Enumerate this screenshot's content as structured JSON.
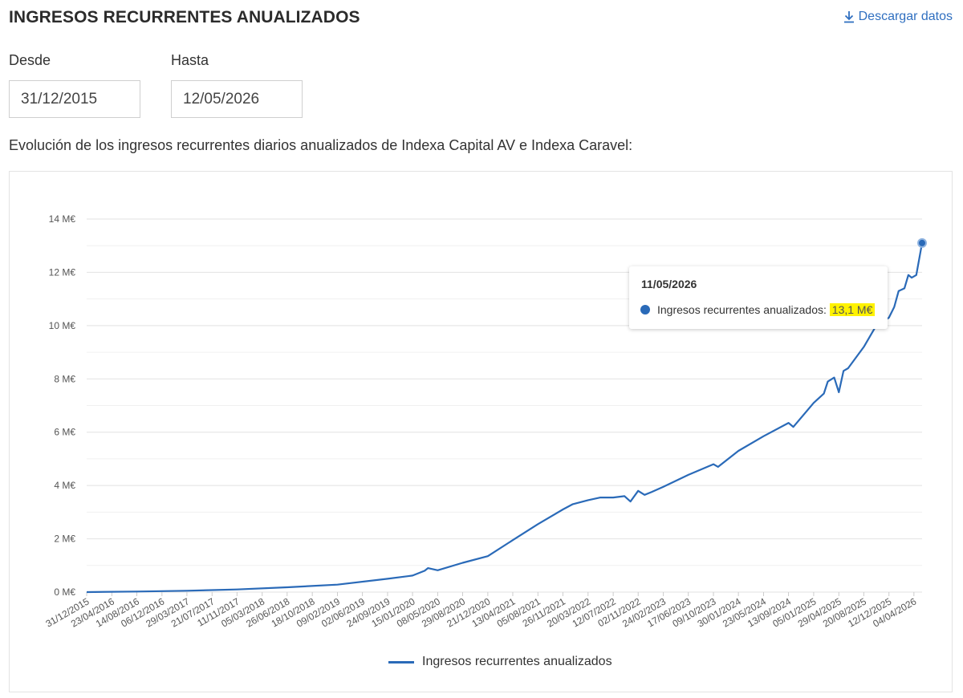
{
  "header": {
    "title": "INGRESOS RECURRENTES ANUALIZADOS",
    "download_label": "Descargar datos",
    "download_icon": "download-icon"
  },
  "filters": {
    "from_label": "Desde",
    "from_value": "31/12/2015",
    "to_label": "Hasta",
    "to_value": "12/05/2026"
  },
  "description": "Evolución de los ingresos recurrentes diarios anualizados de Indexa Capital AV e Indexa Caravel:",
  "tooltip": {
    "date": "11/05/2026",
    "label": "Ingresos recurrentes anualizados: ",
    "value": "13,1 M€"
  },
  "colors": {
    "series": "#2a6ab8",
    "accent_link": "#2f6fc0",
    "highlight": "#fff200",
    "grid": "#e6e6e6"
  },
  "chart_data": {
    "type": "line",
    "title": "",
    "xlabel": "",
    "ylabel": "",
    "ylim": [
      0,
      14
    ],
    "y_ticks": [
      0,
      2,
      4,
      6,
      8,
      10,
      12,
      14
    ],
    "y_tick_labels": [
      "0 M€",
      "2 M€",
      "4 M€",
      "6 M€",
      "8 M€",
      "10 M€",
      "12 M€",
      "14 M€"
    ],
    "x_tick_labels": [
      "31/12/2015",
      "23/04/2016",
      "14/08/2016",
      "06/12/2016",
      "29/03/2017",
      "21/07/2017",
      "11/11/2017",
      "05/03/2018",
      "26/06/2018",
      "18/10/2018",
      "09/02/2019",
      "02/06/2019",
      "24/09/2019",
      "15/01/2020",
      "08/05/2020",
      "29/08/2020",
      "21/12/2020",
      "13/04/2021",
      "05/08/2021",
      "26/11/2021",
      "20/03/2022",
      "12/07/2022",
      "02/11/2022",
      "24/02/2023",
      "17/06/2023",
      "09/10/2023",
      "30/01/2024",
      "23/05/2024",
      "13/09/2024",
      "05/01/2025",
      "29/04/2025",
      "20/08/2025",
      "12/12/2025",
      "04/04/2026"
    ],
    "grid": true,
    "legend_position": "bottom-center",
    "series": [
      {
        "name": "Ingresos recurrentes anualizados",
        "x": [
          "2015-12-31",
          "2016-08-14",
          "2017-03-29",
          "2017-11-11",
          "2018-06-26",
          "2019-02-09",
          "2019-09-24",
          "2020-01-15",
          "2020-03-10",
          "2020-03-25",
          "2020-05-08",
          "2020-08-29",
          "2020-12-21",
          "2021-04-13",
          "2021-08-05",
          "2021-11-26",
          "2022-01-10",
          "2022-03-20",
          "2022-05-15",
          "2022-07-12",
          "2022-09-01",
          "2022-09-28",
          "2022-11-02",
          "2022-12-01",
          "2023-01-01",
          "2023-02-24",
          "2023-06-17",
          "2023-10-09",
          "2023-10-30",
          "2024-01-30",
          "2024-05-23",
          "2024-09-13",
          "2024-10-05",
          "2025-01-05",
          "2025-02-20",
          "2025-03-10",
          "2025-04-08",
          "2025-04-29",
          "2025-05-20",
          "2025-06-10",
          "2025-08-20",
          "2025-10-15",
          "2025-12-12",
          "2026-01-05",
          "2026-01-25",
          "2026-02-20",
          "2026-03-10",
          "2026-03-25",
          "2026-04-15",
          "2026-05-11"
        ],
        "values": [
          0.0,
          0.02,
          0.05,
          0.1,
          0.18,
          0.28,
          0.5,
          0.62,
          0.8,
          0.9,
          0.82,
          1.1,
          1.35,
          1.95,
          2.55,
          3.1,
          3.3,
          3.45,
          3.55,
          3.55,
          3.6,
          3.4,
          3.8,
          3.65,
          3.75,
          3.95,
          4.4,
          4.8,
          4.7,
          5.3,
          5.85,
          6.35,
          6.2,
          7.1,
          7.45,
          7.9,
          8.05,
          7.5,
          8.3,
          8.4,
          9.2,
          10.0,
          10.3,
          10.7,
          11.3,
          11.4,
          11.9,
          11.8,
          11.9,
          13.1
        ]
      }
    ]
  }
}
